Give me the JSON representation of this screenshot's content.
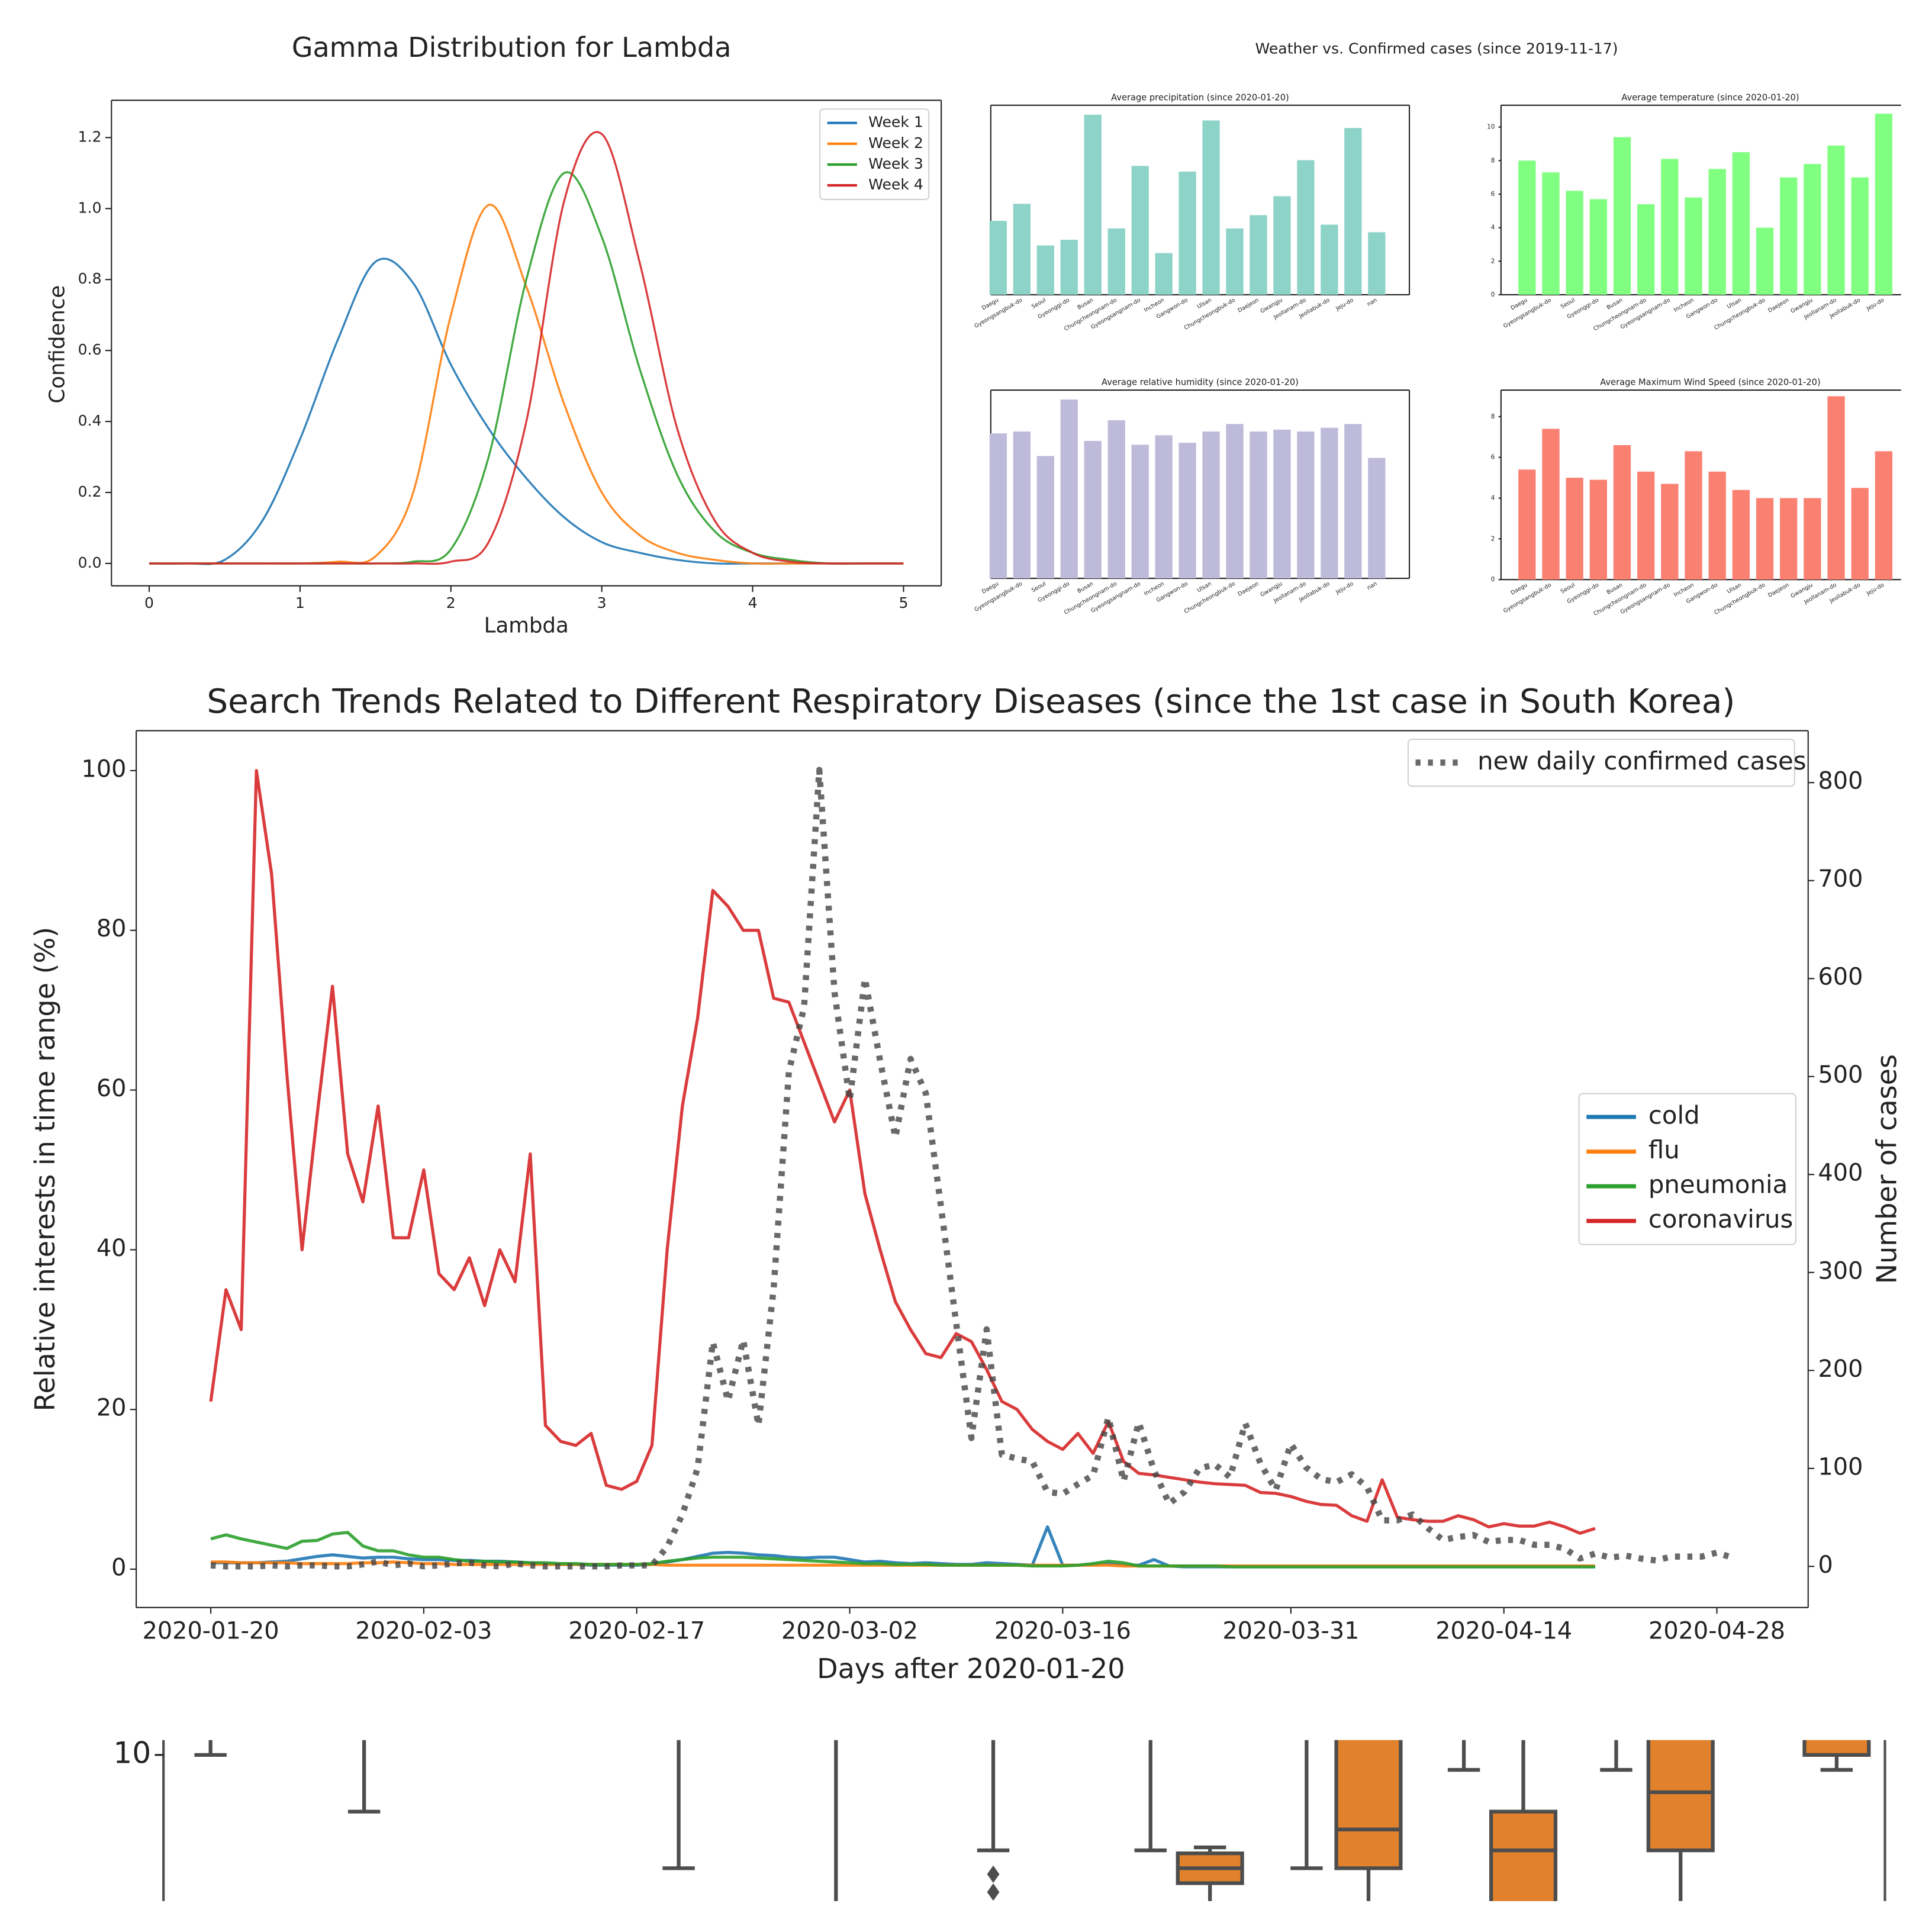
{
  "chart_data": [
    {
      "type": "line",
      "smooth": true,
      "title": "Gamma Distribution for Lambda",
      "xlabel": "Lambda",
      "ylabel": "Confidence",
      "x": [
        0,
        0.25,
        0.5,
        0.75,
        1,
        1.25,
        1.5,
        1.75,
        2,
        2.25,
        2.5,
        2.75,
        3,
        3.25,
        3.5,
        3.75,
        4,
        4.25,
        4.5,
        4.75,
        5
      ],
      "series": [
        {
          "name": "Week 1",
          "color": "#1f77b4",
          "values": [
            0,
            0,
            0.01,
            0.12,
            0.35,
            0.63,
            0.85,
            0.79,
            0.56,
            0.38,
            0.24,
            0.13,
            0.06,
            0.03,
            0.01,
            0,
            0,
            0,
            0,
            0,
            0
          ]
        },
        {
          "name": "Week 2",
          "color": "#ff7f0e",
          "values": [
            0,
            0,
            0,
            0,
            0,
            0.005,
            0.02,
            0.2,
            0.7,
            1.01,
            0.78,
            0.45,
            0.2,
            0.08,
            0.03,
            0.01,
            0,
            0,
            0,
            0,
            0
          ]
        },
        {
          "name": "Week 3",
          "color": "#2ca02c",
          "values": [
            0,
            0,
            0,
            0,
            0,
            0,
            0,
            0.005,
            0.04,
            0.3,
            0.8,
            1.1,
            0.92,
            0.55,
            0.25,
            0.09,
            0.03,
            0.01,
            0,
            0,
            0
          ]
        },
        {
          "name": "Week 4",
          "color": "#d62728",
          "values": [
            0,
            0,
            0,
            0,
            0,
            0,
            0,
            0,
            0.005,
            0.06,
            0.4,
            1.02,
            1.21,
            0.85,
            0.38,
            0.12,
            0.03,
            0.005,
            0,
            0,
            0
          ]
        }
      ],
      "xlim": [
        -0.25,
        5.25
      ],
      "xticks": [
        0,
        1,
        2,
        3,
        4,
        5
      ],
      "ylim": [
        -0.063,
        1.305
      ],
      "yticks": [
        {
          "value": 0,
          "label": "0.0"
        },
        0.2,
        0.4,
        0.6,
        0.8,
        {
          "value": 1,
          "label": "1.0"
        },
        1.2
      ],
      "grid": false,
      "legend": "upper right"
    },
    {
      "type": "bar-grid",
      "title": "Weather vs. Confirmed cases (since 2019-11-17)",
      "charts": [
        {
          "type": "bar",
          "title": "Average precipitation (since 2020-01-20)",
          "categories": [
            "Daegu",
            "Gyeongsangbuk-do",
            "Seoul",
            "Gyeonggi-do",
            "Busan",
            "Chungcheongnam-do",
            "Gyeongsangnam-do",
            "Incheon",
            "Gangwon-do",
            "Ulsan",
            "Chungcheongbuk-do",
            "Daejeon",
            "Gwangju",
            "Jeollanam-do",
            "Jeollabuk-do",
            "Jeju-do",
            "nan"
          ],
          "values": [
            3.9,
            4.8,
            2.6,
            2.9,
            9.5,
            3.5,
            6.8,
            2.2,
            6.5,
            9.2,
            3.5,
            4.2,
            5.2,
            7.1,
            3.7,
            8.8,
            3.3
          ],
          "color": "#8dd3c7",
          "ylim": [
            0,
            10
          ]
        },
        {
          "type": "bar",
          "title": "Average temperature (since 2020-01-20)",
          "categories": [
            "Daegu",
            "Gyeongsangbuk-do",
            "Seoul",
            "Gyeonggi-do",
            "Busan",
            "Chungcheongnam-do",
            "Gyeongsangnam-do",
            "Incheon",
            "Gangwon-do",
            "Ulsan",
            "Chungcheongbuk-do",
            "Daejeon",
            "Gwangju",
            "Jeollanam-do",
            "Jeollabuk-do",
            "Jeju-do"
          ],
          "values": [
            8.0,
            7.3,
            6.2,
            5.7,
            9.4,
            5.4,
            8.1,
            5.8,
            7.5,
            8.5,
            4.0,
            7.0,
            7.8,
            8.9,
            7.0,
            10.8
          ],
          "color": "#80ff80",
          "ylim": [
            0,
            11.3
          ],
          "yticks": [
            0,
            2,
            4,
            6,
            8,
            10
          ]
        },
        {
          "type": "bar",
          "title": "Average relative humidity (since 2020-01-20)",
          "categories": [
            "Daegu",
            "Gyeongsangbuk-do",
            "Seoul",
            "Gyeonggi-do",
            "Busan",
            "Chungcheongnam-do",
            "Gyeongsangnam-do",
            "Incheon",
            "Gangwon-do",
            "Ulsan",
            "Chungcheongbuk-do",
            "Daejeon",
            "Gwangju",
            "Jeollanam-do",
            "Jeollabuk-do",
            "Jeju-do",
            "nan"
          ],
          "values": [
            7.7,
            7.8,
            6.5,
            9.5,
            7.3,
            8.4,
            7.1,
            7.6,
            7.2,
            7.8,
            8.2,
            7.8,
            7.9,
            7.8,
            8.0,
            8.2,
            6.4
          ],
          "color": "#bebada",
          "ylim": [
            0,
            10
          ]
        },
        {
          "type": "bar",
          "title": "Average Maximum Wind Speed (since 2020-01-20)",
          "categories": [
            "Daegu",
            "Gyeongsangbuk-do",
            "Seoul",
            "Gyeonggi-do",
            "Busan",
            "Chungcheongnam-do",
            "Gyeongsangnam-do",
            "Incheon",
            "Gangwon-do",
            "Ulsan",
            "Chungcheongbuk-do",
            "Daejeon",
            "Gwangju",
            "Jeollanam-do",
            "Jeollabuk-do",
            "Jeju-do"
          ],
          "values": [
            5.4,
            7.4,
            5.0,
            4.9,
            6.6,
            5.3,
            4.7,
            6.3,
            5.3,
            4.4,
            4.0,
            4.0,
            4.0,
            9.0,
            4.5,
            6.3
          ],
          "color": "#fa8072",
          "ylim": [
            0,
            9.3
          ],
          "yticks": [
            0,
            2,
            4,
            6,
            8
          ]
        }
      ]
    },
    {
      "type": "line",
      "title": "Search Trends Related to Different Respiratory Diseases (since the 1st case in South Korea)",
      "xlabel": "Days after 2020-01-20",
      "ylabel": "Relative interests in time range (%)",
      "y2label": "Number of cases",
      "x": [
        0,
        1,
        2,
        3,
        4,
        5,
        6,
        7,
        8,
        9,
        10,
        11,
        12,
        13,
        14,
        15,
        16,
        17,
        18,
        19,
        20,
        21,
        22,
        23,
        24,
        25,
        26,
        27,
        28,
        29,
        30,
        31,
        32,
        33,
        34,
        35,
        36,
        37,
        38,
        39,
        40,
        41,
        42,
        43,
        44,
        45,
        46,
        47,
        48,
        49,
        50,
        51,
        52,
        53,
        54,
        55,
        56,
        57,
        58,
        59,
        60,
        61,
        62,
        63,
        64,
        65,
        66,
        67,
        68,
        69,
        70,
        71,
        72,
        73,
        74,
        75,
        76,
        77,
        78,
        79,
        80,
        81,
        82,
        83,
        84,
        85,
        86,
        87,
        88,
        89,
        90,
        91,
        92,
        93,
        94,
        95,
        96,
        97,
        98,
        99,
        100
      ],
      "series": [
        {
          "name": "cold",
          "color": "#1f77b4",
          "values": [
            0.8,
            0.8,
            0.8,
            0.8,
            0.9,
            1,
            1.3,
            1.6,
            1.8,
            1.6,
            1.4,
            1.5,
            1.5,
            1.3,
            1.2,
            1.2,
            1.1,
            1.1,
            1,
            1,
            0.9,
            0.8,
            0.7,
            0.6,
            0.6,
            0.5,
            0.5,
            0.5,
            0.5,
            0.6,
            0.9,
            1.2,
            1.6,
            2,
            2.1,
            2,
            1.8,
            1.7,
            1.5,
            1.4,
            1.5,
            1.5,
            1.2,
            0.9,
            1,
            0.8,
            0.7,
            0.8,
            0.7,
            0.6,
            0.6,
            0.8,
            0.7,
            0.6,
            0.5,
            5.3,
            0.5,
            0.5,
            0.6,
            0.7,
            0.5,
            0.5,
            1.2,
            0.4,
            0.3,
            0.3,
            0.3,
            0.3,
            0.3,
            0.3,
            0.3,
            0.3,
            0.3,
            0.3,
            0.3,
            0.3,
            0.3,
            0.3,
            0.3,
            0.3,
            0.3,
            0.3,
            0.3,
            0.3,
            0.3,
            0.3,
            0.3,
            0.3,
            0.3,
            0.3,
            0.3,
            0.3,
            null,
            null,
            null,
            null,
            null,
            null,
            null,
            null,
            null
          ]
        },
        {
          "name": "flu",
          "color": "#ff7f0e",
          "values": [
            0.9,
            0.9,
            0.8,
            0.8,
            0.8,
            0.8,
            0.7,
            0.7,
            0.7,
            0.7,
            0.8,
            0.8,
            0.9,
            0.8,
            0.7,
            0.7,
            0.6,
            0.6,
            0.6,
            0.6,
            0.6,
            0.6,
            0.6,
            0.6,
            0.6,
            0.6,
            0.6,
            0.6,
            0.6,
            0.6,
            0.5,
            0.5,
            0.5,
            0.5,
            0.5,
            0.5,
            0.5,
            0.5,
            0.5,
            0.5,
            0.5,
            0.5,
            0.5,
            0.5,
            0.5,
            0.5,
            0.5,
            0.5,
            0.5,
            0.5,
            0.5,
            0.5,
            0.5,
            0.5,
            0.5,
            0.5,
            0.5,
            0.5,
            0.5,
            0.5,
            0.4,
            0.4,
            0.4,
            0.4,
            0.4,
            0.4,
            0.4,
            0.4,
            0.4,
            0.4,
            0.4,
            0.4,
            0.4,
            0.4,
            0.4,
            0.4,
            0.4,
            0.4,
            0.4,
            0.4,
            0.4,
            0.4,
            0.4,
            0.4,
            0.4,
            0.4,
            0.4,
            0.4,
            0.4,
            0.4,
            0.4,
            0.4,
            null,
            null,
            null,
            null,
            null,
            null,
            null,
            null,
            null
          ]
        },
        {
          "name": "pneumonia",
          "color": "#2ca02c",
          "values": [
            3.8,
            4.3,
            3.8,
            3.4,
            3.0,
            2.6,
            3.5,
            3.6,
            4.4,
            4.6,
            2.9,
            2.3,
            2.3,
            1.8,
            1.5,
            1.5,
            1.2,
            1.0,
            1.0,
            0.9,
            0.9,
            0.8,
            0.8,
            0.7,
            0.7,
            0.6,
            0.6,
            0.6,
            0.6,
            0.7,
            1.0,
            1.2,
            1.4,
            1.5,
            1.5,
            1.5,
            1.4,
            1.3,
            1.2,
            1.1,
            1.0,
            0.9,
            0.8,
            0.7,
            0.7,
            0.6,
            0.6,
            0.6,
            0.5,
            0.5,
            0.5,
            0.5,
            0.5,
            0.5,
            0.4,
            0.4,
            0.4,
            0.5,
            0.7,
            1.0,
            0.8,
            0.4,
            0.4,
            0.4,
            0.4,
            0.4,
            0.4,
            0.3,
            0.3,
            0.3,
            0.3,
            0.3,
            0.3,
            0.3,
            0.3,
            0.3,
            0.3,
            0.3,
            0.3,
            0.3,
            0.3,
            0.3,
            0.3,
            0.3,
            0.3,
            0.3,
            0.3,
            0.3,
            0.3,
            0.3,
            0.3,
            0.3,
            null,
            null,
            null,
            null,
            null,
            null,
            null,
            null,
            null
          ]
        },
        {
          "name": "coronavirus",
          "color": "#d62728",
          "values": [
            21,
            35,
            30,
            100,
            87,
            62,
            40,
            57,
            73,
            52,
            46,
            58,
            41.5,
            41.5,
            50,
            37,
            35,
            39,
            33,
            40,
            36,
            52,
            18,
            16,
            15.5,
            17,
            10.5,
            10,
            11,
            15.5,
            40,
            58,
            69,
            85,
            83,
            80,
            80,
            71.5,
            71,
            66,
            61,
            56,
            60,
            47,
            40,
            33.5,
            30,
            27,
            26.5,
            29.5,
            28.5,
            25,
            21,
            20,
            17.5,
            16,
            15,
            17,
            14.5,
            18.5,
            13.5,
            12,
            11.8,
            11.5,
            11.2,
            10.9,
            10.7,
            10.6,
            10.5,
            9.6,
            9.5,
            9.1,
            8.5,
            8.1,
            8,
            6.7,
            6,
            11.2,
            6.5,
            6.2,
            6,
            6,
            6.7,
            6.2,
            5.3,
            5.7,
            5.4,
            5.4,
            5.9,
            5.3,
            4.5,
            5.1,
            null,
            null,
            null,
            null,
            null,
            null,
            null,
            null,
            null
          ]
        },
        {
          "name": "new daily confirmed cases",
          "color": "#444444",
          "linestyle": "dotted",
          "axis": "y2",
          "values": [
            1,
            0,
            0,
            0,
            1,
            0,
            1,
            1,
            0,
            0,
            2,
            5,
            1,
            3,
            0,
            1,
            3,
            4,
            1,
            0,
            3,
            1,
            0,
            0,
            0,
            0,
            0,
            1,
            1,
            1,
            20,
            53,
            100,
            229,
            169,
            231,
            144,
            284,
            505,
            571,
            813,
            586,
            476,
            600,
            516,
            438,
            518,
            483,
            367,
            248,
            131,
            242,
            114,
            110,
            107,
            76,
            74,
            84,
            93,
            152,
            87,
            147,
            98,
            64,
            76,
            100,
            104,
            91,
            146,
            105,
            78,
            125,
            101,
            89,
            86,
            94,
            81,
            47,
            47,
            53,
            39,
            27,
            30,
            32,
            25,
            27,
            27,
            22,
            22,
            18,
            8,
            13,
            9,
            11,
            8,
            6,
            10,
            10,
            10,
            14,
            9
          ]
        }
      ],
      "xlim": [
        -4.9,
        105
      ],
      "xticks": [
        {
          "value": 0,
          "label": "2020-01-20"
        },
        {
          "value": 14,
          "label": "2020-02-03"
        },
        {
          "value": 28,
          "label": "2020-02-17"
        },
        {
          "value": 42,
          "label": "2020-03-02"
        },
        {
          "value": 56,
          "label": "2020-03-16"
        },
        {
          "value": 71,
          "label": "2020-03-31"
        },
        {
          "value": 85,
          "label": "2020-04-14"
        },
        {
          "value": 99,
          "label": "2020-04-28"
        }
      ],
      "ylim": [
        -4.8,
        105
      ],
      "yticks": [
        0,
        20,
        40,
        60,
        80,
        100
      ],
      "y2lim": [
        -42,
        853
      ],
      "y2ticks": [
        0,
        100,
        200,
        300,
        400,
        500,
        600,
        700,
        800
      ],
      "grid": false,
      "legend": "center right"
    },
    {
      "type": "box",
      "ylim": [
        5.1,
        10.5
      ],
      "yticks": [
        10
      ],
      "boxes": [
        {
          "whisker_low": 10
        },
        {
          "whisker_low": 8.1
        },
        {
          "whisker_low": 6.2
        },
        {
          "whisker_low": 6.8,
          "outliers": [
            6.0,
            5.4
          ]
        },
        {
          "whisker_low": 6.8
        },
        {
          "color": "#e1812c",
          "q1": 5.7,
          "median": 6.2,
          "q3": 6.7,
          "whisker_high": 6.9
        },
        {
          "whisker_low": 6.2
        },
        {
          "color": "#e1812c",
          "q1": 6.2,
          "median": 7.5
        },
        {
          "whisker_low": 9.5
        },
        {
          "color": "#e1812c",
          "median": 6.8,
          "q3": 8.1
        },
        {
          "whisker_low": 9.5
        },
        {
          "color": "#e1812c",
          "q1": 6.8,
          "median": 8.75
        },
        {
          "color": "#e1812c",
          "whisker_low": 9.5,
          "q1": 10
        }
      ]
    }
  ]
}
